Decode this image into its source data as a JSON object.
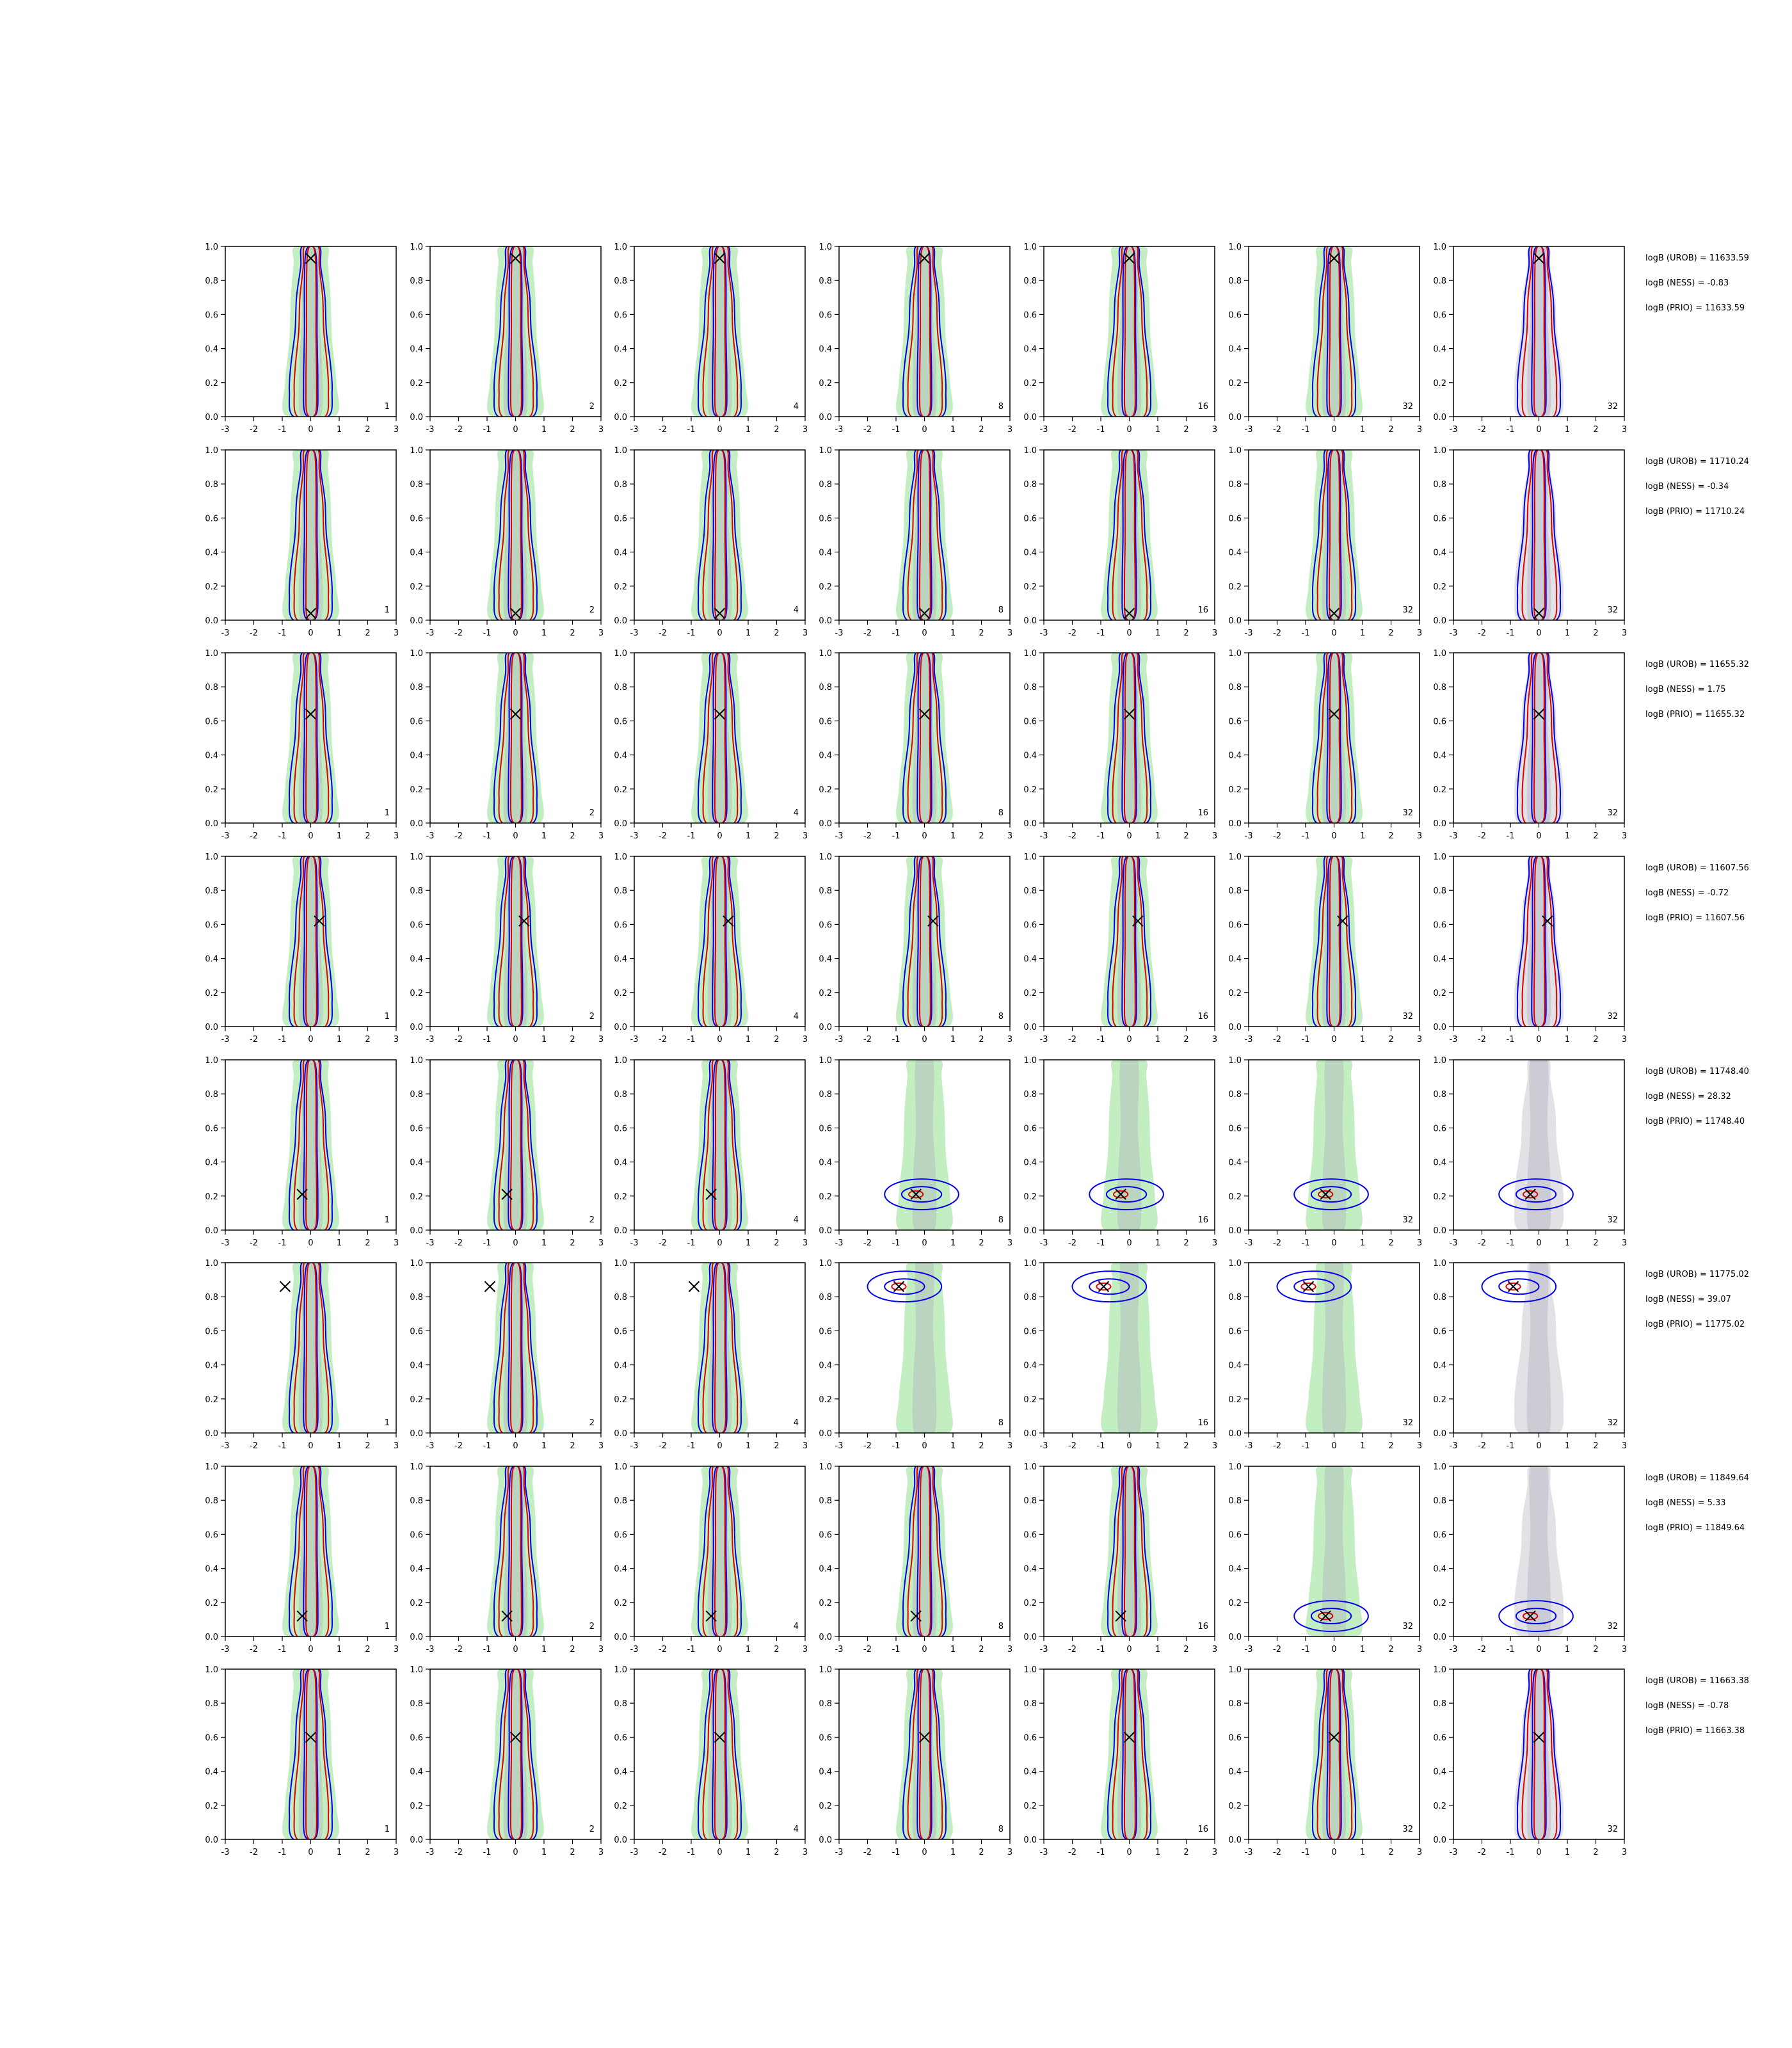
{
  "chart_data": {
    "type": "contour",
    "layout": {
      "rows": 8,
      "cols": 7
    },
    "xlim": [
      -3,
      3
    ],
    "ylim": [
      0,
      1
    ],
    "xticks": [
      -3,
      -2,
      -1,
      0,
      1,
      2,
      3
    ],
    "yticks": [
      0.0,
      0.2,
      0.4,
      0.6,
      0.8,
      1.0
    ],
    "panel_labels": [
      "1",
      "2",
      "4",
      "8",
      "16",
      "32",
      "32"
    ],
    "colors": {
      "blue_contour": "#0000ee",
      "red_contour": "#e00000",
      "green_fill": "#90e090",
      "gray_fill": "#c8c8d2",
      "marker": "#000000"
    },
    "rows": [
      {
        "marker": [
          0.0,
          0.93
        ],
        "annotations": [
          "logB (UROB) = 11633.59",
          "logB (NESS) = -0.83",
          "logB (PRIO) = 11633.59"
        ]
      },
      {
        "marker": [
          0.0,
          0.04
        ],
        "annotations": [
          "logB (UROB) = 11710.24",
          "logB (NESS) = -0.34",
          "logB (PRIO) = 11710.24"
        ]
      },
      {
        "marker": [
          0.0,
          0.64
        ],
        "annotations": [
          "logB (UROB) = 11655.32",
          "logB (NESS) = 1.75",
          "logB (PRIO) = 11655.32"
        ]
      },
      {
        "marker": [
          0.3,
          0.62
        ],
        "annotations": [
          "logB (UROB) = 11607.56",
          "logB (NESS) = -0.72",
          "logB (PRIO) = 11607.56"
        ]
      },
      {
        "marker": [
          -0.3,
          0.21
        ],
        "annotations": [
          "logB (UROB) = 11748.40",
          "logB (NESS) = 28.32",
          "logB (PRIO) = 11748.40"
        ]
      },
      {
        "marker": [
          -0.9,
          0.86
        ],
        "annotations": [
          "logB (UROB) = 11775.02",
          "logB (NESS) = 39.07",
          "logB (PRIO) = 11775.02"
        ]
      },
      {
        "marker": [
          -0.3,
          0.12
        ],
        "annotations": [
          "logB (UROB) = 11849.64",
          "logB (NESS) = 5.33",
          "logB (PRIO) = 11849.64"
        ]
      },
      {
        "marker": [
          0.0,
          0.6
        ],
        "annotations": [
          "logB (UROB) = 11663.38",
          "logB (NESS) = -0.78",
          "logB (PRIO) = 11663.38"
        ]
      }
    ]
  }
}
